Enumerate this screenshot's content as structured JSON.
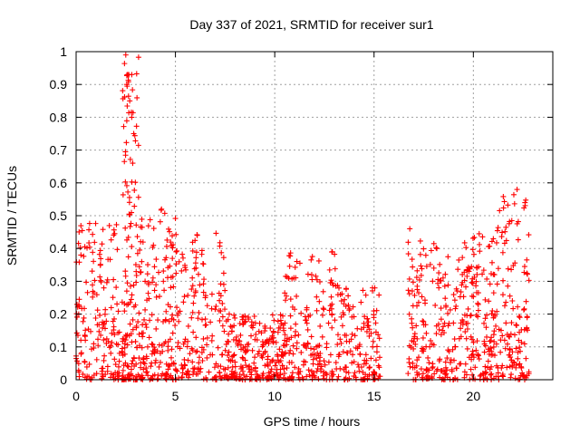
{
  "chart_data": {
    "type": "scatter",
    "title": "Day 337 of 2021, SRMTID for receiver sur1",
    "xlabel": "GPS time / hours",
    "ylabel": "SRMTID / TECUs",
    "xlim": [
      0,
      24
    ],
    "ylim": [
      0,
      1
    ],
    "xticks": [
      0,
      5,
      10,
      15,
      20
    ],
    "yticks": [
      0,
      0.1,
      0.2,
      0.3,
      0.4,
      0.5,
      0.6,
      0.7,
      0.8,
      0.9,
      1
    ],
    "xtick_labels": [
      "0",
      "5",
      "10",
      "15",
      "20"
    ],
    "ytick_labels": [
      "0",
      "0.1",
      "0.2",
      "0.3",
      "0.4",
      "0.5",
      "0.6",
      "0.7",
      "0.8",
      "0.9",
      "1"
    ],
    "grid": true,
    "marker": "+",
    "color": "#ff0000",
    "series": [
      {
        "name": "SRMTID",
        "clusters": [
          {
            "x_start": 0.0,
            "x_end": 2.2,
            "y_min": 0.0,
            "y_max": 0.48,
            "count": 170
          },
          {
            "x_start": 2.3,
            "x_end": 3.2,
            "y_min": 0.0,
            "y_max": 1.0,
            "count": 150
          },
          {
            "x_start": 3.2,
            "x_end": 5.0,
            "y_min": 0.0,
            "y_max": 0.52,
            "count": 160
          },
          {
            "x_start": 5.0,
            "x_end": 7.5,
            "y_min": 0.0,
            "y_max": 0.45,
            "count": 170
          },
          {
            "x_start": 7.5,
            "x_end": 10.5,
            "y_min": 0.0,
            "y_max": 0.2,
            "count": 230
          },
          {
            "x_start": 10.5,
            "x_end": 13.5,
            "y_min": 0.0,
            "y_max": 0.39,
            "count": 200
          },
          {
            "x_start": 13.5,
            "x_end": 15.4,
            "y_min": 0.0,
            "y_max": 0.3,
            "count": 120
          },
          {
            "x_start": 16.7,
            "x_end": 18.2,
            "y_min": 0.0,
            "y_max": 0.46,
            "count": 110
          },
          {
            "x_start": 18.2,
            "x_end": 19.5,
            "y_min": 0.0,
            "y_max": 0.38,
            "count": 90
          },
          {
            "x_start": 19.5,
            "x_end": 21.0,
            "y_min": 0.0,
            "y_max": 0.45,
            "count": 130
          },
          {
            "x_start": 21.0,
            "x_end": 22.8,
            "y_min": 0.0,
            "y_max": 0.58,
            "count": 150
          }
        ],
        "notable_points": [
          {
            "x": 2.5,
            "y": 0.99
          },
          {
            "x": 2.6,
            "y": 0.93
          },
          {
            "x": 2.8,
            "y": 0.93
          },
          {
            "x": 2.55,
            "y": 0.9
          },
          {
            "x": 2.7,
            "y": 0.85
          },
          {
            "x": 2.8,
            "y": 0.8
          },
          {
            "x": 2.9,
            "y": 0.75
          },
          {
            "x": 2.85,
            "y": 0.66
          },
          {
            "x": 4.3,
            "y": 0.52
          },
          {
            "x": 6.1,
            "y": 0.44
          },
          {
            "x": 12.9,
            "y": 0.39
          },
          {
            "x": 16.8,
            "y": 0.46
          },
          {
            "x": 22.2,
            "y": 0.58
          },
          {
            "x": 22.6,
            "y": 0.54
          }
        ]
      }
    ]
  }
}
